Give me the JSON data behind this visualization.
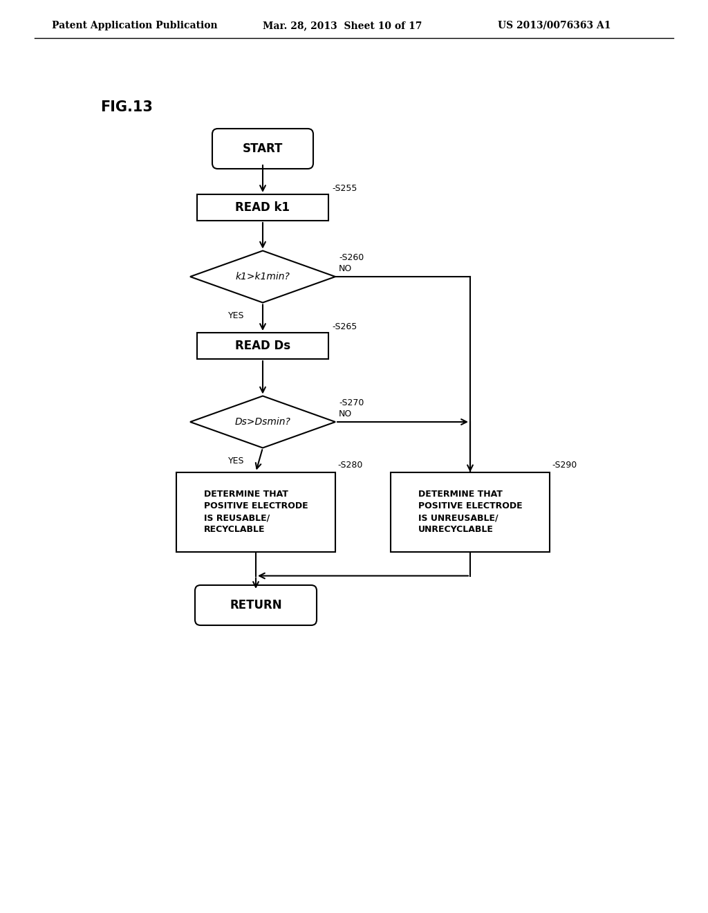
{
  "bg_color": "#ffffff",
  "header_left": "Patent Application Publication",
  "header_mid": "Mar. 28, 2013  Sheet 10 of 17",
  "header_right": "US 2013/0076363 A1",
  "fig_label": "FIG.13",
  "line_color": "#000000",
  "text_color": "#000000",
  "font_size_header": 10,
  "font_size_step": 9,
  "font_size_node_small": 9,
  "font_size_node_large": 10,
  "font_size_fig": 15
}
